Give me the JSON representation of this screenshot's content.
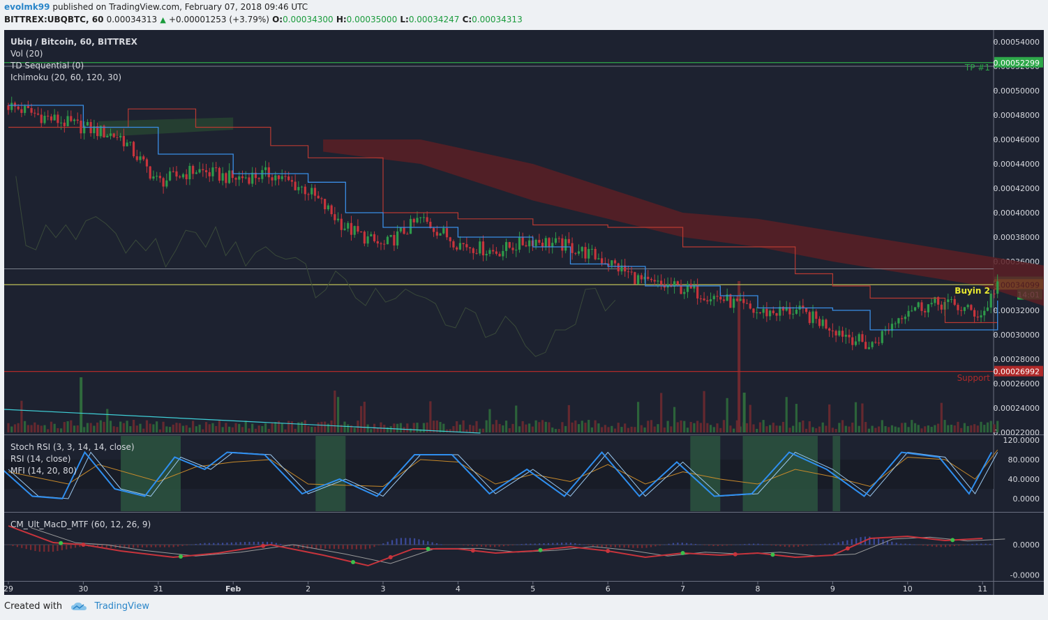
{
  "header": {
    "user": "evolmk99",
    "published_text": "published on TradingView.com, February 07, 2018 09:46 UTC",
    "symbol_line": "BITTREX:UBQBTC, 60",
    "last_price": "0.00034313",
    "change": "+0.00001253 (+3.79%)",
    "open_label": "O:",
    "open": "0.00034300",
    "high_label": "H:",
    "high": "0.00035000",
    "low_label": "L:",
    "low": "0.00034247",
    "close_label": "C:",
    "close": "0.00034313"
  },
  "legends": {
    "main": [
      "Ubiq / Bitcoin, 60, BITTREX",
      "Vol (20)",
      "TD Sequential (0)",
      "Ichimoku (20, 60, 120, 30)"
    ],
    "osc": [
      "Stoch RSI (3, 3, 14, 14, close)",
      "RSI (14, close)",
      "MFI (14, 20, 80)"
    ],
    "macd": "CM_Ult_MacD_MTF (60, 12, 26, 9)"
  },
  "annotations": {
    "tp1": "TP #1",
    "buyin2": "Buyin 2",
    "support": "Support",
    "countdown": "14:01"
  },
  "footer": {
    "created_with": "Created with",
    "brand": "TradingView"
  },
  "colors": {
    "background": "#1d2230",
    "up": "#2e9a4a",
    "down": "#c8343c",
    "kijun": "#b83a32",
    "tenkan": "#3a8ee6",
    "cloud": "#5a1e24",
    "tp_line": "#2ea84a",
    "buyin_line": "#d4d420",
    "support_line": "#b02a2a",
    "stoch": "#2f8ff0",
    "rsi": "#c88a2a",
    "macd_line": "#c8343c",
    "macd_signal": "#9a9a9a"
  },
  "chart_data": {
    "type": "candlestick",
    "title": "Ubiq / Bitcoin, 60, BITTREX",
    "x_ticks": [
      "29",
      "30",
      "31",
      "Feb",
      "2",
      "3",
      "4",
      "5",
      "6",
      "7",
      "8",
      "9",
      "10",
      "11"
    ],
    "price_axis": {
      "ticks": [
        "0.00054000",
        "0.00052000",
        "0.00050000",
        "0.00048000",
        "0.00046000",
        "0.00044000",
        "0.00042000",
        "0.00040000",
        "0.00038000",
        "0.00036000",
        "0.00034000",
        "0.00032000",
        "0.00030000",
        "0.00028000",
        "0.00026000",
        "0.00024000",
        "0.00022000"
      ],
      "ylim": [
        0.00022,
        0.00055
      ]
    },
    "levels": [
      {
        "label": "TP #1",
        "value": 0.00052299,
        "tag": "0.00052299"
      },
      {
        "label": "Buyin 2",
        "value": 0.00034099,
        "tag": "0.00034099"
      },
      {
        "label": "Support",
        "value": 0.00026992,
        "tag": "0.00026992"
      }
    ],
    "last_price_tag": "0.00034313",
    "price_path": [
      {
        "d": 0.0,
        "p": 0.000488
      },
      {
        "d": 0.5,
        "p": 0.000478
      },
      {
        "d": 1.0,
        "p": 0.00047
      },
      {
        "d": 1.5,
        "p": 0.000462
      },
      {
        "d": 2.0,
        "p": 0.000425
      },
      {
        "d": 2.5,
        "p": 0.000435
      },
      {
        "d": 3.0,
        "p": 0.000428
      },
      {
        "d": 3.5,
        "p": 0.000432
      },
      {
        "d": 4.0,
        "p": 0.000418
      },
      {
        "d": 4.5,
        "p": 0.000388
      },
      {
        "d": 5.0,
        "p": 0.000372
      },
      {
        "d": 5.5,
        "p": 0.000395
      },
      {
        "d": 6.0,
        "p": 0.000375
      },
      {
        "d": 6.5,
        "p": 0.000368
      },
      {
        "d": 7.0,
        "p": 0.000378
      },
      {
        "d": 7.5,
        "p": 0.000372
      },
      {
        "d": 8.0,
        "p": 0.00036
      },
      {
        "d": 8.5,
        "p": 0.000342
      },
      {
        "d": 9.0,
        "p": 0.000338
      },
      {
        "d": 9.5,
        "p": 0.00033
      },
      {
        "d": 10.0,
        "p": 0.000318
      },
      {
        "d": 10.5,
        "p": 0.00032
      },
      {
        "d": 11.0,
        "p": 0.000306
      },
      {
        "d": 11.5,
        "p": 0.00029
      },
      {
        "d": 12.0,
        "p": 0.000322
      },
      {
        "d": 12.5,
        "p": 0.000326
      },
      {
        "d": 13.0,
        "p": 0.000316
      },
      {
        "d": 13.2,
        "p": 0.000343
      }
    ],
    "tenkan_path": [
      {
        "d": 0.0,
        "p": 0.000488
      },
      {
        "d": 1.0,
        "p": 0.00047
      },
      {
        "d": 2.0,
        "p": 0.000448
      },
      {
        "d": 3.0,
        "p": 0.000432
      },
      {
        "d": 4.0,
        "p": 0.000425
      },
      {
        "d": 4.5,
        "p": 0.0004
      },
      {
        "d": 5.0,
        "p": 0.000388
      },
      {
        "d": 6.0,
        "p": 0.00038
      },
      {
        "d": 7.0,
        "p": 0.000372
      },
      {
        "d": 7.5,
        "p": 0.000358
      },
      {
        "d": 8.0,
        "p": 0.000356
      },
      {
        "d": 8.5,
        "p": 0.00034
      },
      {
        "d": 9.0,
        "p": 0.00034
      },
      {
        "d": 9.5,
        "p": 0.000332
      },
      {
        "d": 10.0,
        "p": 0.000322
      },
      {
        "d": 11.0,
        "p": 0.00032
      },
      {
        "d": 11.5,
        "p": 0.000304
      },
      {
        "d": 12.5,
        "p": 0.000304
      },
      {
        "d": 13.0,
        "p": 0.000304
      },
      {
        "d": 13.2,
        "p": 0.000328
      }
    ],
    "kijun_path": [
      {
        "d": 0.0,
        "p": 0.00047
      },
      {
        "d": 1.0,
        "p": 0.00047
      },
      {
        "d": 1.6,
        "p": 0.000485
      },
      {
        "d": 2.5,
        "p": 0.00047
      },
      {
        "d": 3.5,
        "p": 0.000455
      },
      {
        "d": 4.0,
        "p": 0.000445
      },
      {
        "d": 5.0,
        "p": 0.0004
      },
      {
        "d": 6.0,
        "p": 0.000395
      },
      {
        "d": 7.0,
        "p": 0.00039
      },
      {
        "d": 8.0,
        "p": 0.000388
      },
      {
        "d": 9.0,
        "p": 0.000372
      },
      {
        "d": 9.8,
        "p": 0.000372
      },
      {
        "d": 10.5,
        "p": 0.00035
      },
      {
        "d": 11.0,
        "p": 0.00034
      },
      {
        "d": 11.5,
        "p": 0.00033
      },
      {
        "d": 12.5,
        "p": 0.00031
      },
      {
        "d": 13.2,
        "p": 0.00031
      }
    ],
    "cloud_path": [
      {
        "d": 4.2,
        "top": 0.00046,
        "bot": 0.00045
      },
      {
        "d": 5.5,
        "top": 0.00046,
        "bot": 0.00044
      },
      {
        "d": 7.0,
        "top": 0.00044,
        "bot": 0.00041
      },
      {
        "d": 8.0,
        "top": 0.00042,
        "bot": 0.000395
      },
      {
        "d": 9.0,
        "top": 0.0004,
        "bot": 0.00038
      },
      {
        "d": 10.0,
        "top": 0.000395,
        "bot": 0.000372
      },
      {
        "d": 11.0,
        "top": 0.000385,
        "bot": 0.00036
      },
      {
        "d": 12.0,
        "top": 0.000375,
        "bot": 0.00035
      },
      {
        "d": 13.0,
        "top": 0.000365,
        "bot": 0.00034
      },
      {
        "d": 14.0,
        "top": 0.000355,
        "bot": 0.00032
      },
      {
        "d": 15.0,
        "top": 0.00034,
        "bot": 0.000305
      }
    ],
    "oscillator": {
      "ticks": [
        "120.0000",
        "80.0000",
        "40.0000",
        "0.0000"
      ],
      "ylim": [
        -20,
        120
      ],
      "stoch_rsi_path": [
        {
          "d": 0.0,
          "v": 60
        },
        {
          "d": 0.4,
          "v": 5
        },
        {
          "d": 0.8,
          "v": 0
        },
        {
          "d": 1.1,
          "v": 95
        },
        {
          "d": 1.5,
          "v": 20
        },
        {
          "d": 1.9,
          "v": 5
        },
        {
          "d": 2.3,
          "v": 85
        },
        {
          "d": 2.7,
          "v": 60
        },
        {
          "d": 3.0,
          "v": 95
        },
        {
          "d": 3.5,
          "v": 90
        },
        {
          "d": 4.0,
          "v": 10
        },
        {
          "d": 4.5,
          "v": 40
        },
        {
          "d": 5.0,
          "v": 5
        },
        {
          "d": 5.5,
          "v": 90
        },
        {
          "d": 6.0,
          "v": 90
        },
        {
          "d": 6.5,
          "v": 10
        },
        {
          "d": 7.0,
          "v": 60
        },
        {
          "d": 7.5,
          "v": 5
        },
        {
          "d": 8.0,
          "v": 95
        },
        {
          "d": 8.5,
          "v": 5
        },
        {
          "d": 9.0,
          "v": 75
        },
        {
          "d": 9.5,
          "v": 5
        },
        {
          "d": 10.0,
          "v": 10
        },
        {
          "d": 10.5,
          "v": 95
        },
        {
          "d": 11.0,
          "v": 60
        },
        {
          "d": 11.5,
          "v": 5
        },
        {
          "d": 12.0,
          "v": 95
        },
        {
          "d": 12.5,
          "v": 85
        },
        {
          "d": 12.9,
          "v": 10
        },
        {
          "d": 13.2,
          "v": 95
        }
      ],
      "rsi_path": [
        {
          "d": 0.0,
          "v": 55
        },
        {
          "d": 0.8,
          "v": 30
        },
        {
          "d": 1.2,
          "v": 70
        },
        {
          "d": 2.0,
          "v": 35
        },
        {
          "d": 2.5,
          "v": 65
        },
        {
          "d": 3.0,
          "v": 75
        },
        {
          "d": 3.5,
          "v": 80
        },
        {
          "d": 4.0,
          "v": 30
        },
        {
          "d": 5.0,
          "v": 25
        },
        {
          "d": 5.5,
          "v": 80
        },
        {
          "d": 6.0,
          "v": 75
        },
        {
          "d": 6.5,
          "v": 30
        },
        {
          "d": 7.0,
          "v": 50
        },
        {
          "d": 7.5,
          "v": 35
        },
        {
          "d": 8.0,
          "v": 70
        },
        {
          "d": 8.5,
          "v": 30
        },
        {
          "d": 9.0,
          "v": 55
        },
        {
          "d": 9.5,
          "v": 40
        },
        {
          "d": 10.0,
          "v": 30
        },
        {
          "d": 10.5,
          "v": 60
        },
        {
          "d": 11.0,
          "v": 45
        },
        {
          "d": 11.5,
          "v": 25
        },
        {
          "d": 12.0,
          "v": 85
        },
        {
          "d": 12.5,
          "v": 80
        },
        {
          "d": 12.9,
          "v": 40
        },
        {
          "d": 13.2,
          "v": 100
        }
      ],
      "highlight_bands": [
        [
          1.5,
          2.3
        ],
        [
          4.1,
          4.5
        ],
        [
          9.1,
          9.5
        ],
        [
          9.8,
          10.8
        ],
        [
          11.0,
          11.1
        ]
      ]
    },
    "macd": {
      "ticks": [
        "0.0000",
        "-0.0000"
      ],
      "macd_path": [
        {
          "d": 0.0,
          "v": 0.9
        },
        {
          "d": 0.6,
          "v": 0.1
        },
        {
          "d": 1.0,
          "v": 0.0
        },
        {
          "d": 1.5,
          "v": -0.3
        },
        {
          "d": 2.2,
          "v": -0.6
        },
        {
          "d": 2.8,
          "v": -0.4
        },
        {
          "d": 3.5,
          "v": 0.0
        },
        {
          "d": 4.2,
          "v": -0.5
        },
        {
          "d": 4.8,
          "v": -1.0
        },
        {
          "d": 5.4,
          "v": -0.2
        },
        {
          "d": 6.0,
          "v": -0.2
        },
        {
          "d": 6.5,
          "v": -0.4
        },
        {
          "d": 7.0,
          "v": -0.3
        },
        {
          "d": 7.5,
          "v": -0.1
        },
        {
          "d": 8.0,
          "v": -0.3
        },
        {
          "d": 8.5,
          "v": -0.6
        },
        {
          "d": 9.0,
          "v": -0.4
        },
        {
          "d": 9.5,
          "v": -0.5
        },
        {
          "d": 10.0,
          "v": -0.4
        },
        {
          "d": 10.5,
          "v": -0.6
        },
        {
          "d": 11.0,
          "v": -0.5
        },
        {
          "d": 11.5,
          "v": 0.3
        },
        {
          "d": 12.0,
          "v": 0.4
        },
        {
          "d": 12.5,
          "v": 0.2
        },
        {
          "d": 13.0,
          "v": 0.3
        }
      ],
      "ylim": [
        -1.5,
        1.5
      ]
    }
  }
}
